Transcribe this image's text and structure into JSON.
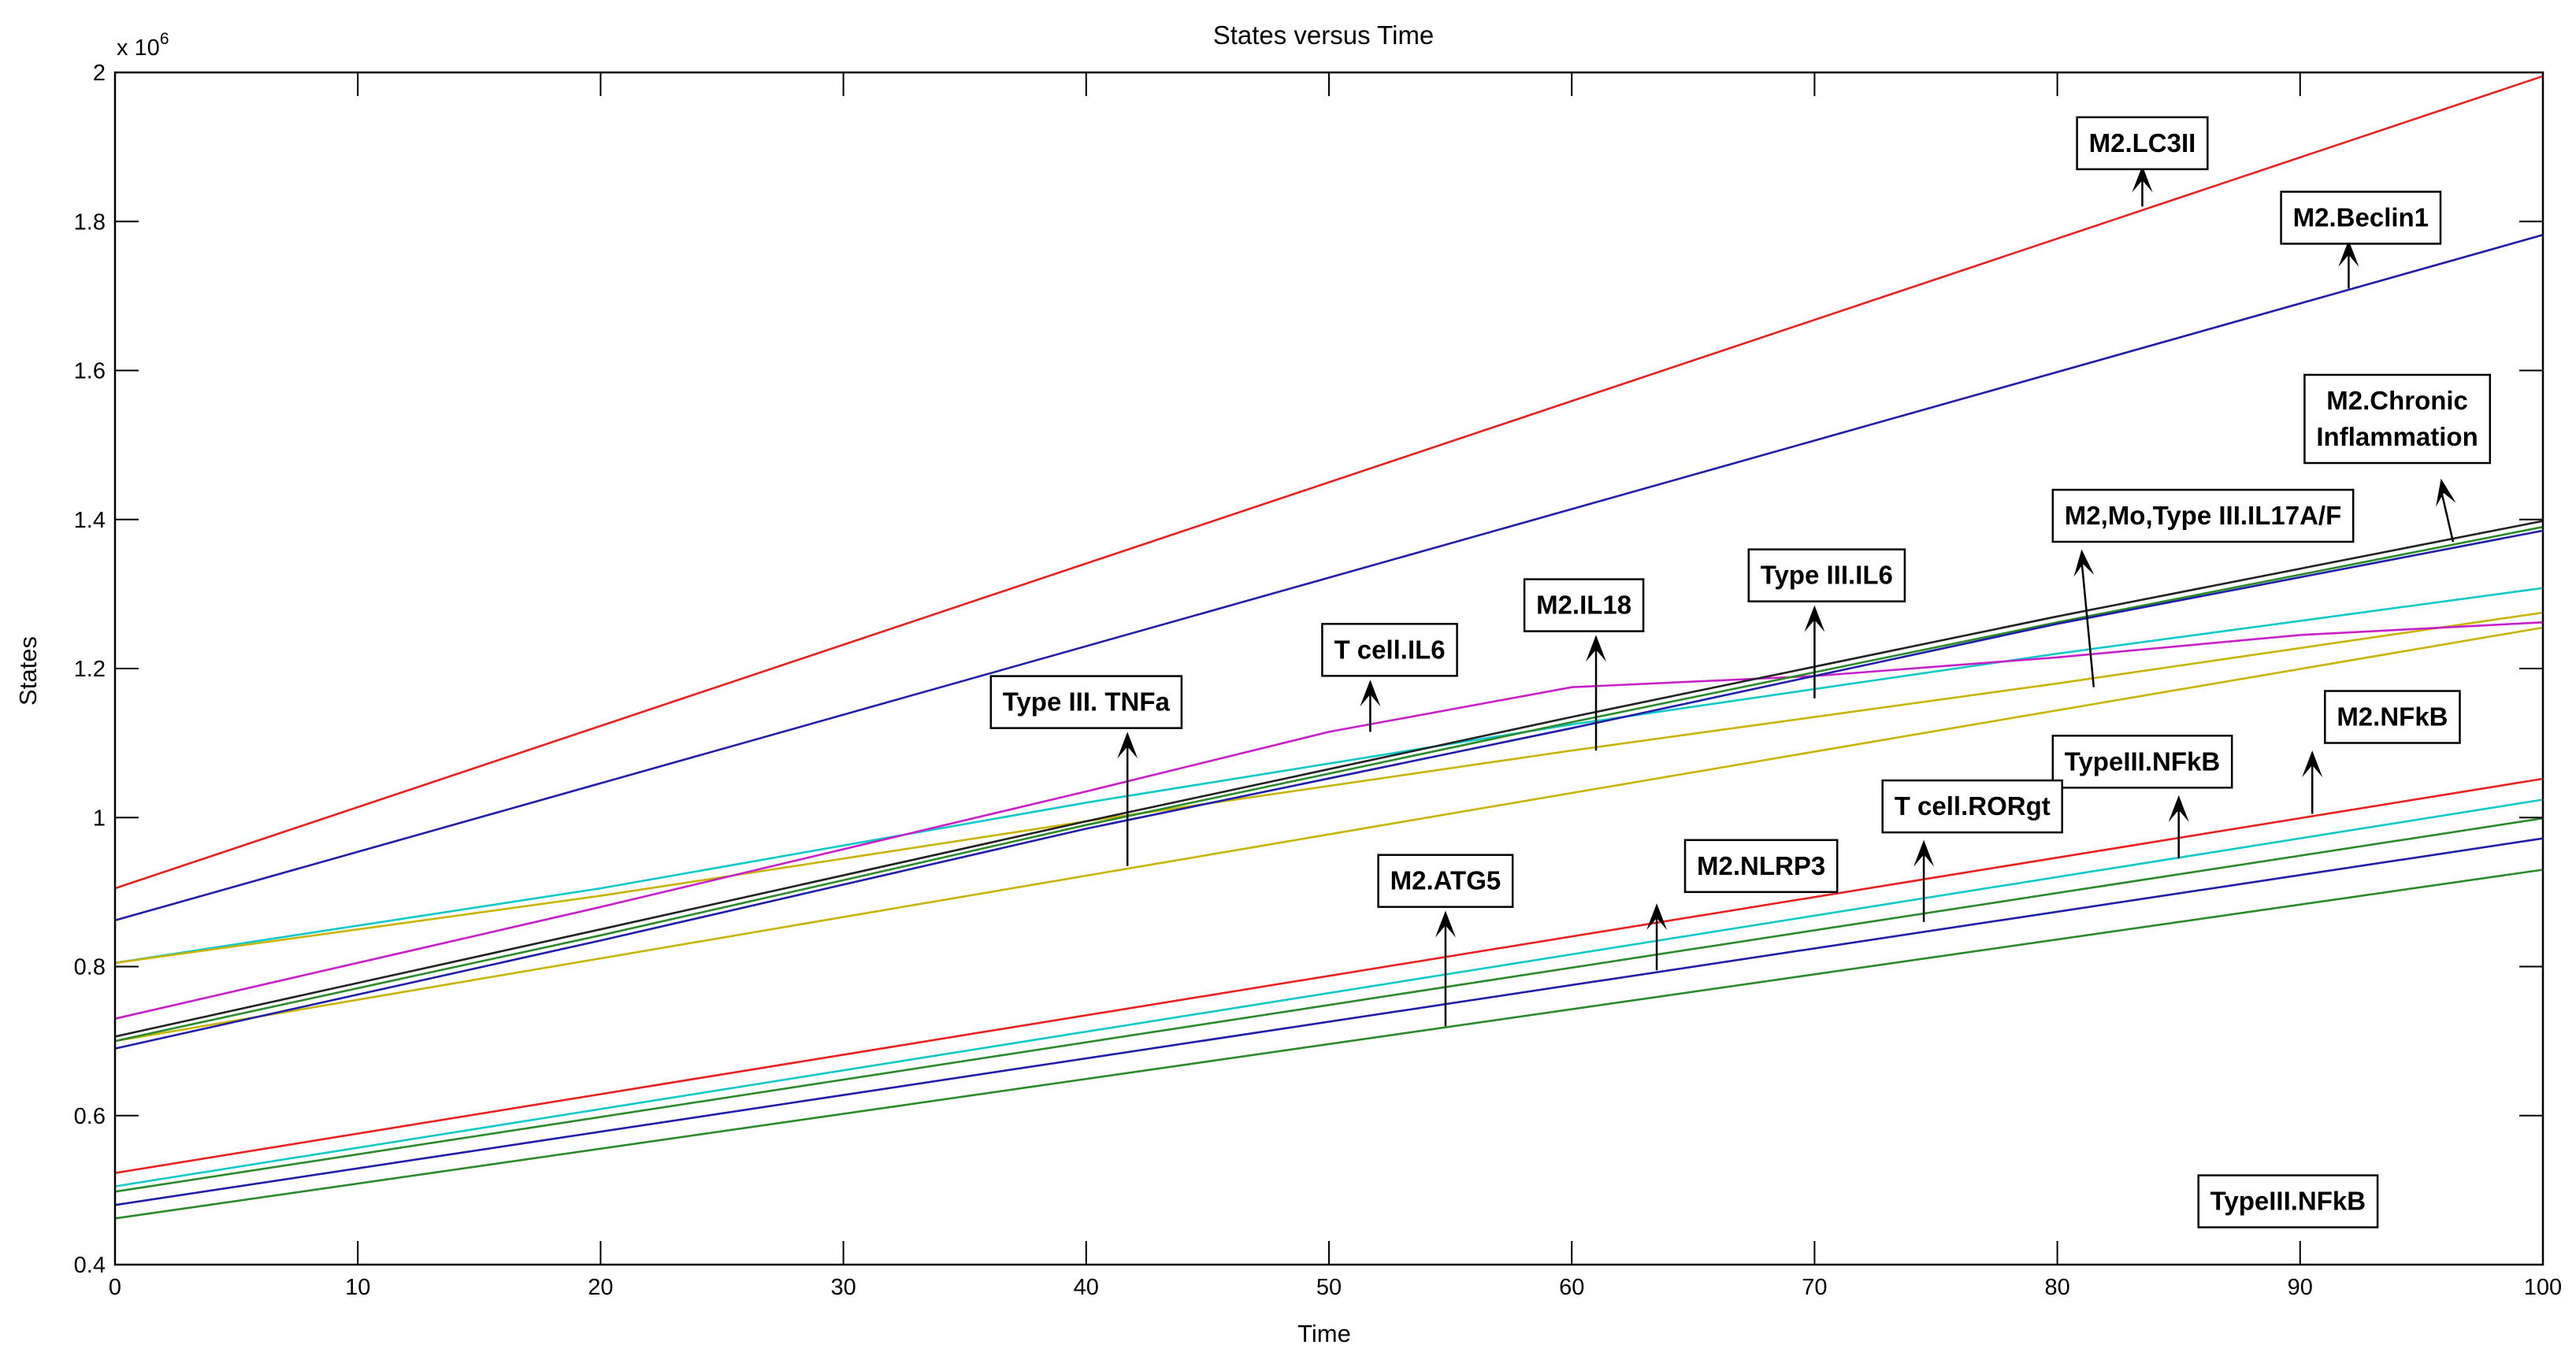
{
  "chart_data": {
    "type": "line",
    "title": "States versus Time",
    "xlabel": "Time",
    "ylabel": "States",
    "y_exponent_prefix": "x 10",
    "y_exponent_power": "6",
    "xlim": [
      0,
      100
    ],
    "ylim": [
      0.4,
      2.0
    ],
    "xticks": [
      0,
      10,
      20,
      30,
      40,
      50,
      60,
      70,
      80,
      90,
      100
    ],
    "xtick_labels": [
      "0",
      "10",
      "20",
      "30",
      "40",
      "50",
      "60",
      "70",
      "80",
      "90",
      "100"
    ],
    "yticks": [
      0.4,
      0.6,
      0.8,
      1.0,
      1.2,
      1.4,
      1.6,
      1.8,
      2.0
    ],
    "ytick_labels": [
      "0.4",
      "0.6",
      "0.8",
      "1",
      "1.2",
      "1.4",
      "1.6",
      "1.8",
      "2"
    ],
    "grid": false,
    "series": [
      {
        "color": "#e8211f",
        "x": [
          0,
          100
        ],
        "y": [
          0.905,
          1.995
        ]
      },
      {
        "color": "#1e1ea8",
        "x": [
          0,
          100
        ],
        "y": [
          0.862,
          1.782
        ]
      },
      {
        "color": "#0fc8c8",
        "x": [
          0,
          20,
          40,
          60,
          80,
          100
        ],
        "y": [
          0.805,
          0.905,
          1.02,
          1.125,
          1.22,
          1.308
        ]
      },
      {
        "color": "#c8b400",
        "x": [
          0,
          20,
          40,
          60,
          80,
          100
        ],
        "y": [
          0.805,
          0.895,
          0.995,
          1.09,
          1.18,
          1.275
        ]
      },
      {
        "color": "#c8b400",
        "x": [
          0,
          100
        ],
        "y": [
          0.7,
          1.255
        ]
      },
      {
        "color": "#c820c8",
        "x": [
          0,
          20,
          40,
          50,
          60,
          70,
          80,
          90,
          100
        ],
        "y": [
          0.73,
          0.88,
          1.035,
          1.115,
          1.175,
          1.19,
          1.215,
          1.245,
          1.262
        ]
      },
      {
        "color": "#222222",
        "x": [
          0,
          20,
          40,
          60,
          80,
          100
        ],
        "y": [
          0.706,
          0.85,
          0.995,
          1.135,
          1.27,
          1.398
        ]
      },
      {
        "color": "#2a8a2a",
        "x": [
          0,
          20,
          40,
          60,
          80,
          100
        ],
        "y": [
          0.7,
          0.842,
          0.99,
          1.128,
          1.262,
          1.39
        ]
      },
      {
        "color": "#1e1ea8",
        "x": [
          0,
          20,
          40,
          60,
          80,
          100
        ],
        "y": [
          0.69,
          0.835,
          0.985,
          1.12,
          1.26,
          1.385
        ]
      },
      {
        "color": "#e8211f",
        "x": [
          0,
          100
        ],
        "y": [
          0.523,
          1.052
        ]
      },
      {
        "color": "#0fc8c8",
        "x": [
          0,
          100
        ],
        "y": [
          0.505,
          1.024
        ]
      },
      {
        "color": "#2a8a2a",
        "x": [
          0,
          100
        ],
        "y": [
          0.498,
          0.999
        ]
      },
      {
        "color": "#1e1ea8",
        "x": [
          0,
          100
        ],
        "y": [
          0.48,
          0.972
        ]
      },
      {
        "color": "#2a8a2a",
        "x": [
          0,
          100
        ],
        "y": [
          0.462,
          0.93
        ]
      }
    ],
    "annotations": [
      {
        "lines": [
          "M2.LC3II"
        ],
        "box_center": [
          83.5,
          1.905
        ],
        "arrow_from": [
          83.5,
          1.82
        ],
        "arrow_to": [
          83.5,
          1.875
        ]
      },
      {
        "lines": [
          "M2.Beclin1"
        ],
        "box_center": [
          92.5,
          1.805
        ],
        "arrow_from": [
          92,
          1.71
        ],
        "arrow_to": [
          92,
          1.775
        ]
      },
      {
        "lines": [
          "M2.Chronic",
          "Inflammation"
        ],
        "box_center": [
          94,
          1.535
        ],
        "arrow_from": [
          96.3,
          1.37
        ],
        "arrow_to": [
          95.8,
          1.455
        ]
      },
      {
        "lines": [
          "M2,Mo,Type III.IL17A/F"
        ],
        "box_center": [
          86,
          1.405
        ],
        "arrow_from": [
          81.5,
          1.175
        ],
        "arrow_to": [
          81,
          1.36
        ]
      },
      {
        "lines": [
          "Type III.IL6"
        ],
        "box_center": [
          70.5,
          1.325
        ],
        "arrow_from": [
          70,
          1.16
        ],
        "arrow_to": [
          70,
          1.285
        ]
      },
      {
        "lines": [
          "M2.IL18"
        ],
        "box_center": [
          60.5,
          1.285
        ],
        "arrow_from": [
          61,
          1.09
        ],
        "arrow_to": [
          61,
          1.245
        ]
      },
      {
        "lines": [
          "T cell.IL6"
        ],
        "box_center": [
          52.5,
          1.225
        ],
        "arrow_from": [
          51.7,
          1.115
        ],
        "arrow_to": [
          51.7,
          1.185
        ]
      },
      {
        "lines": [
          "Type III. TNFa"
        ],
        "box_center": [
          40,
          1.155
        ],
        "arrow_from": [
          41.7,
          0.935
        ],
        "arrow_to": [
          41.7,
          1.115
        ]
      },
      {
        "lines": [
          "M2.NFkB"
        ],
        "box_center": [
          93.8,
          1.135
        ],
        "arrow_from": [
          90.5,
          1.005
        ],
        "arrow_to": [
          90.5,
          1.09
        ]
      },
      {
        "lines": [
          "TypeIII.NFkB"
        ],
        "box_center": [
          83.5,
          1.075
        ],
        "arrow_from": [
          85,
          0.945
        ],
        "arrow_to": [
          85,
          1.03
        ]
      },
      {
        "lines": [
          "T cell.RORgt"
        ],
        "box_center": [
          76.5,
          1.015
        ],
        "arrow_from": [
          74.5,
          0.86
        ],
        "arrow_to": [
          74.5,
          0.97
        ]
      },
      {
        "lines": [
          "M2.NLRP3"
        ],
        "box_center": [
          67.8,
          0.935
        ],
        "arrow_from": [
          63.5,
          0.795
        ],
        "arrow_to": [
          63.5,
          0.885
        ]
      },
      {
        "lines": [
          "M2.ATG5"
        ],
        "box_center": [
          54.8,
          0.915
        ],
        "arrow_from": [
          54.8,
          0.72
        ],
        "arrow_to": [
          54.8,
          0.875
        ]
      },
      {
        "lines": [
          "TypeIII.NFkB"
        ],
        "box_center": [
          89.5,
          0.485
        ]
      }
    ]
  }
}
